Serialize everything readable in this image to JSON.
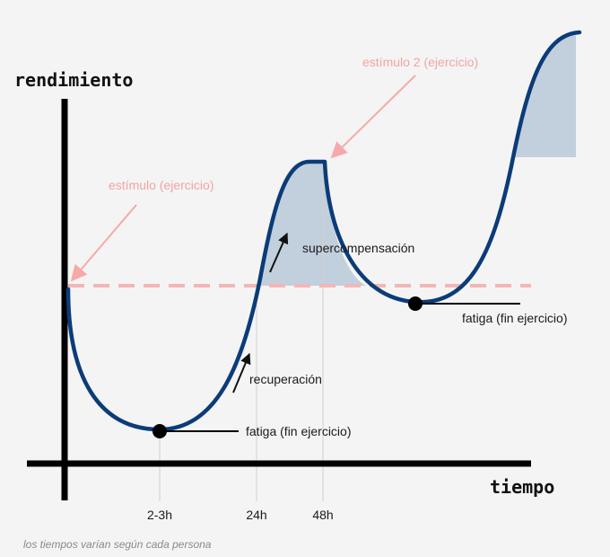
{
  "diagram": {
    "y_axis_label": "rendimiento",
    "x_axis_label": "tiempo",
    "stimulus_1": "estímulo (ejercicio)",
    "stimulus_2": "estímulo 2 (ejercicio)",
    "supercompensation": "supercompensación",
    "recovery": "recuperación",
    "fatigue_1": "fatiga (fin ejercicio)",
    "fatigue_2": "fatiga (fin ejercicio)",
    "ticks": [
      "2-3h",
      "24h",
      "48h"
    ],
    "footnote": "los tiempos varían según cada persona"
  },
  "colors": {
    "curve": "#0b3c78",
    "fill": "#c2cfdd",
    "baseline": "#f4b6b6",
    "arrow_pink": "#f6a9a9",
    "axis": "#000000"
  }
}
